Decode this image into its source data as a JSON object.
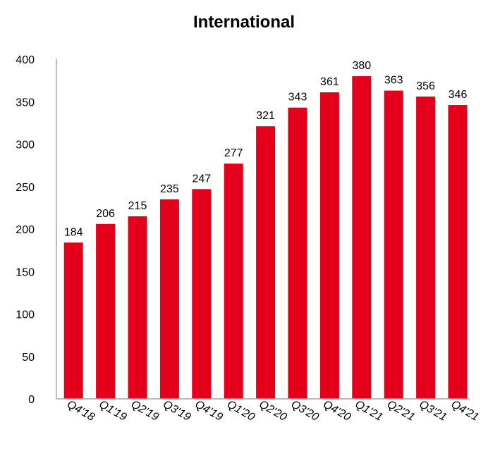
{
  "chart_data": {
    "type": "bar",
    "title": "International",
    "xlabel": "",
    "ylabel": "",
    "categories": [
      "Q4'18",
      "Q1'19",
      "Q2'19",
      "Q3'19",
      "Q4'19",
      "Q1'20",
      "Q2'20",
      "Q3'20",
      "Q4'20",
      "Q1'21",
      "Q2'21",
      "Q3'21",
      "Q4'21"
    ],
    "values": [
      184,
      206,
      215,
      235,
      247,
      277,
      321,
      343,
      361,
      380,
      363,
      356,
      346
    ],
    "ylim": [
      0,
      400
    ],
    "yticks": [
      0,
      50,
      100,
      150,
      200,
      250,
      300,
      350,
      400
    ],
    "grid": false,
    "legend": "none",
    "bar_color": "#e4001b",
    "axis_color": "#a6a6a6"
  }
}
